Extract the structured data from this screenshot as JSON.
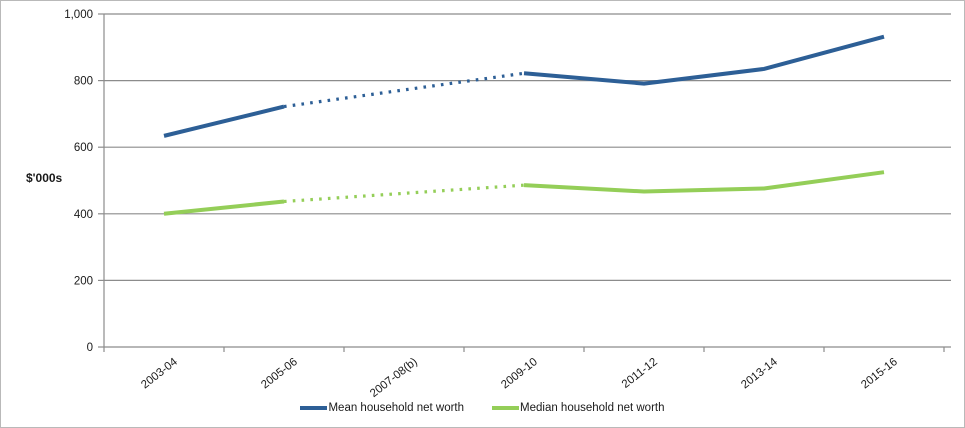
{
  "chart_data": {
    "type": "line",
    "ylabel": "$'000s",
    "categories": [
      "2003-04",
      "2005-06",
      "2007-08(b)",
      "2009-10",
      "2011-12",
      "2013-14",
      "2015-16"
    ],
    "series": [
      {
        "name": "Mean household net worth",
        "color": "#2d5f96",
        "values": [
          634,
          722,
          null,
          822,
          791,
          835,
          932
        ],
        "gap_style": "dotted"
      },
      {
        "name": "Median household net worth",
        "color": "#94ce58",
        "values": [
          400,
          437,
          null,
          486,
          467,
          476,
          525
        ],
        "gap_style": "dotted"
      }
    ],
    "ylim": [
      0,
      1000
    ],
    "ytick_values": [
      0,
      200,
      400,
      600,
      800,
      1000
    ],
    "ytick_labels": [
      "0",
      "200",
      "400",
      "600",
      "800",
      "1,000"
    ],
    "grid": "horizontal",
    "legend_position": "bottom"
  },
  "colors": {
    "gridline": "#8c8c8c",
    "axis": "#8c8c8c",
    "border": "#b9b9b9"
  }
}
